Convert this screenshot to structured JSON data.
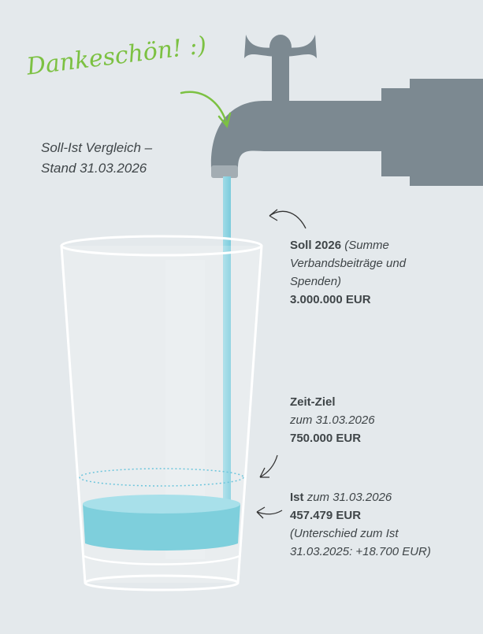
{
  "handwriting": "Dankeschön! :)",
  "subtitle": {
    "line1": "Soll-Ist Vergleich –",
    "line2": "Stand 31.03.2026"
  },
  "soll": {
    "label": "Soll 2026",
    "note": "(Summe Verbandsbeiträge und Spenden)",
    "amount": "3.000.000 EUR"
  },
  "zeit_ziel": {
    "label": "Zeit-Ziel",
    "date": "zum 31.03.2026",
    "amount": "750.000 EUR"
  },
  "ist": {
    "label": "Ist",
    "date": "zum 31.03.2026",
    "amount": "457.479 EUR",
    "note": "(Unterschied zum Ist 31.03.2025: +18.700 EUR)"
  }
}
